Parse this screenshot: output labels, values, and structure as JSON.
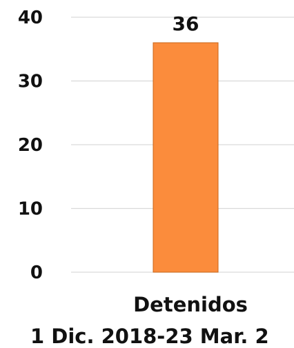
{
  "chart_data": {
    "type": "bar",
    "categories": [
      "Detenidos"
    ],
    "category_sublabel": "1 Dic. 2018-23 Mar. 2",
    "values": [
      36
    ],
    "data_labels": [
      "36"
    ],
    "ylim": [
      0,
      40
    ],
    "yticks": [
      0,
      10,
      20,
      30,
      40
    ],
    "grid": true,
    "title": "",
    "xlabel": "",
    "ylabel": "",
    "colors": {
      "bar": "#FB8C3C",
      "bar_edge": "#C8661A",
      "grid": "#D9D9D9",
      "text": "#111111"
    }
  }
}
